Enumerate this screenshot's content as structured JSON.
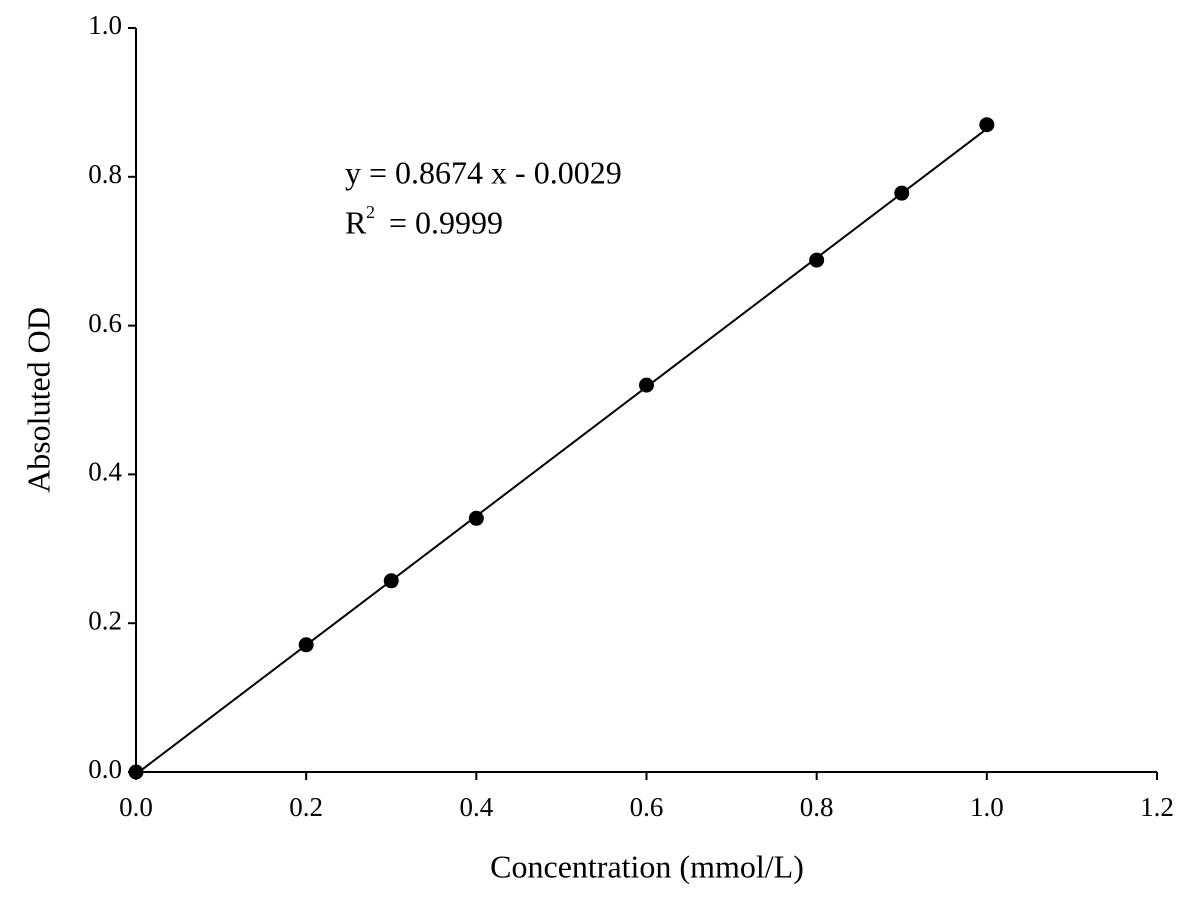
{
  "chart_data": {
    "type": "scatter",
    "x_label": "Concentration (mmol/L)",
    "y_label": "Absoluted OD",
    "x": [
      0,
      0.2,
      0.3,
      0.4,
      0.6,
      0.8,
      0.9,
      1.0
    ],
    "values": [
      0,
      0.171,
      0.257,
      0.341,
      0.52,
      0.688,
      0.778,
      0.87
    ],
    "color": "#000000",
    "trendline": {
      "slope": 0.8674,
      "intercept": -0.0029
    },
    "equation": "y = 0.8674 x - 0.0029",
    "r_squared": {
      "symbol": "R",
      "exponent": "2",
      "text": "= 0.9999"
    },
    "xlim": [
      0,
      1.2
    ],
    "xticks": [
      {
        "value": 0,
        "label": "0.0"
      },
      0.2,
      0.4,
      0.6,
      0.8,
      {
        "value": 1.0,
        "label": "1.0"
      },
      1.2
    ],
    "ylim": [
      0,
      1.0
    ],
    "yticks": [
      {
        "value": 0,
        "label": "0.0"
      },
      0.2,
      0.4,
      0.6,
      0.8,
      {
        "value": 1.0,
        "label": "1.0"
      }
    ],
    "grid": false
  }
}
